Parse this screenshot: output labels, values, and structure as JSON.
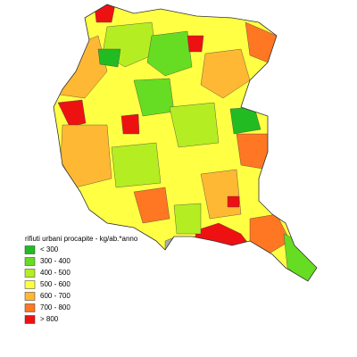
{
  "legend": {
    "title": "rifiuti urbani procapite - kg/ab.*anno",
    "items": [
      {
        "label": "< 300",
        "color": "#22bb22"
      },
      {
        "label": "300 - 400",
        "color": "#66dd22"
      },
      {
        "label": "400 - 500",
        "color": "#b4ee22"
      },
      {
        "label": "500 - 600",
        "color": "#ffff44"
      },
      {
        "label": "600 - 700",
        "color": "#ffb833"
      },
      {
        "label": "700 - 800",
        "color": "#ff7722"
      },
      {
        "label": "> 800",
        "color": "#ee1111"
      }
    ]
  }
}
